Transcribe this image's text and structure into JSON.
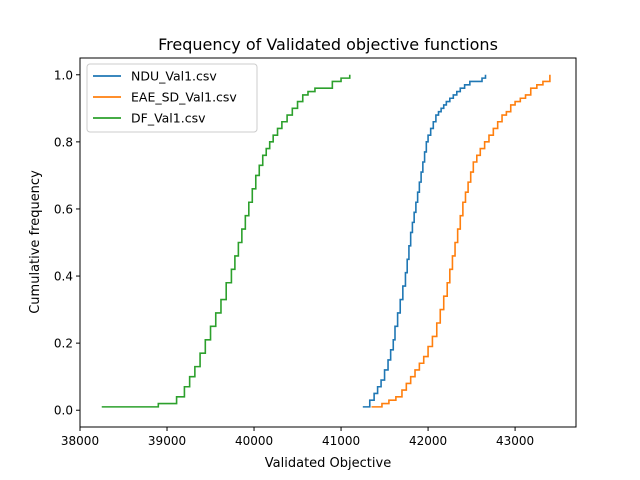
{
  "chart_data": {
    "type": "line",
    "step": true,
    "title": "Frequency of Validated objective functions",
    "xlabel": "Validated Objective",
    "ylabel": "Cumulative frequency",
    "xlim": [
      38000,
      43700
    ],
    "ylim": [
      -0.05,
      1.05
    ],
    "xticks": [
      38000,
      39000,
      40000,
      41000,
      42000,
      43000
    ],
    "xtick_labels": [
      "38000",
      "39000",
      "40000",
      "41000",
      "42000",
      "43000"
    ],
    "yticks": [
      0.0,
      0.2,
      0.4,
      0.6,
      0.8,
      1.0
    ],
    "ytick_labels": [
      "0.0",
      "0.2",
      "0.4",
      "0.6",
      "0.8",
      "1.0"
    ],
    "grid": false,
    "legend_position": "upper-left",
    "series": [
      {
        "name": "NDU_Val1.csv",
        "color": "#1f77b4",
        "x": [
          41250,
          41330,
          41380,
          41420,
          41460,
          41500,
          41540,
          41570,
          41600,
          41620,
          41650,
          41680,
          41710,
          41740,
          41760,
          41780,
          41800,
          41820,
          41840,
          41860,
          41880,
          41900,
          41920,
          41940,
          41960,
          41980,
          42000,
          42030,
          42060,
          42090,
          42120,
          42150,
          42180,
          42210,
          42250,
          42290,
          42330,
          42370,
          42420,
          42480,
          42560,
          42620,
          42660
        ],
        "y": [
          0.01,
          0.03,
          0.05,
          0.07,
          0.09,
          0.12,
          0.15,
          0.18,
          0.21,
          0.25,
          0.29,
          0.33,
          0.37,
          0.41,
          0.45,
          0.49,
          0.53,
          0.56,
          0.59,
          0.62,
          0.65,
          0.68,
          0.71,
          0.74,
          0.77,
          0.8,
          0.82,
          0.84,
          0.86,
          0.88,
          0.89,
          0.9,
          0.91,
          0.92,
          0.93,
          0.94,
          0.95,
          0.96,
          0.97,
          0.98,
          0.98,
          0.99,
          1.0
        ]
      },
      {
        "name": "EAE_SD_Val1.csv",
        "color": "#ff7f0e",
        "x": [
          41350,
          41470,
          41550,
          41630,
          41700,
          41750,
          41800,
          41850,
          41900,
          41950,
          42000,
          42050,
          42100,
          42140,
          42180,
          42220,
          42250,
          42280,
          42310,
          42340,
          42370,
          42400,
          42430,
          42460,
          42490,
          42520,
          42560,
          42600,
          42650,
          42700,
          42750,
          42800,
          42850,
          42900,
          42950,
          43000,
          43060,
          43120,
          43180,
          43250,
          43320,
          43400
        ],
        "y": [
          0.01,
          0.02,
          0.03,
          0.04,
          0.06,
          0.08,
          0.1,
          0.12,
          0.14,
          0.16,
          0.19,
          0.22,
          0.26,
          0.3,
          0.34,
          0.38,
          0.42,
          0.46,
          0.5,
          0.54,
          0.58,
          0.62,
          0.65,
          0.68,
          0.71,
          0.74,
          0.76,
          0.78,
          0.8,
          0.82,
          0.84,
          0.86,
          0.88,
          0.89,
          0.91,
          0.92,
          0.93,
          0.94,
          0.96,
          0.97,
          0.98,
          1.0
        ]
      },
      {
        "name": "DF_Val1.csv",
        "color": "#2ca02c",
        "x": [
          38250,
          38900,
          39110,
          39200,
          39260,
          39320,
          39380,
          39440,
          39500,
          39560,
          39620,
          39680,
          39740,
          39780,
          39820,
          39860,
          39900,
          39940,
          39980,
          40020,
          40060,
          40100,
          40140,
          40180,
          40220,
          40270,
          40320,
          40380,
          40440,
          40500,
          40560,
          40620,
          40700,
          40800,
          40900,
          41000,
          41100
        ],
        "y": [
          0.01,
          0.02,
          0.04,
          0.07,
          0.1,
          0.13,
          0.17,
          0.21,
          0.25,
          0.29,
          0.33,
          0.38,
          0.42,
          0.46,
          0.5,
          0.54,
          0.58,
          0.62,
          0.66,
          0.7,
          0.73,
          0.76,
          0.78,
          0.8,
          0.82,
          0.84,
          0.86,
          0.88,
          0.9,
          0.92,
          0.94,
          0.95,
          0.96,
          0.96,
          0.98,
          0.99,
          1.0
        ]
      }
    ]
  }
}
